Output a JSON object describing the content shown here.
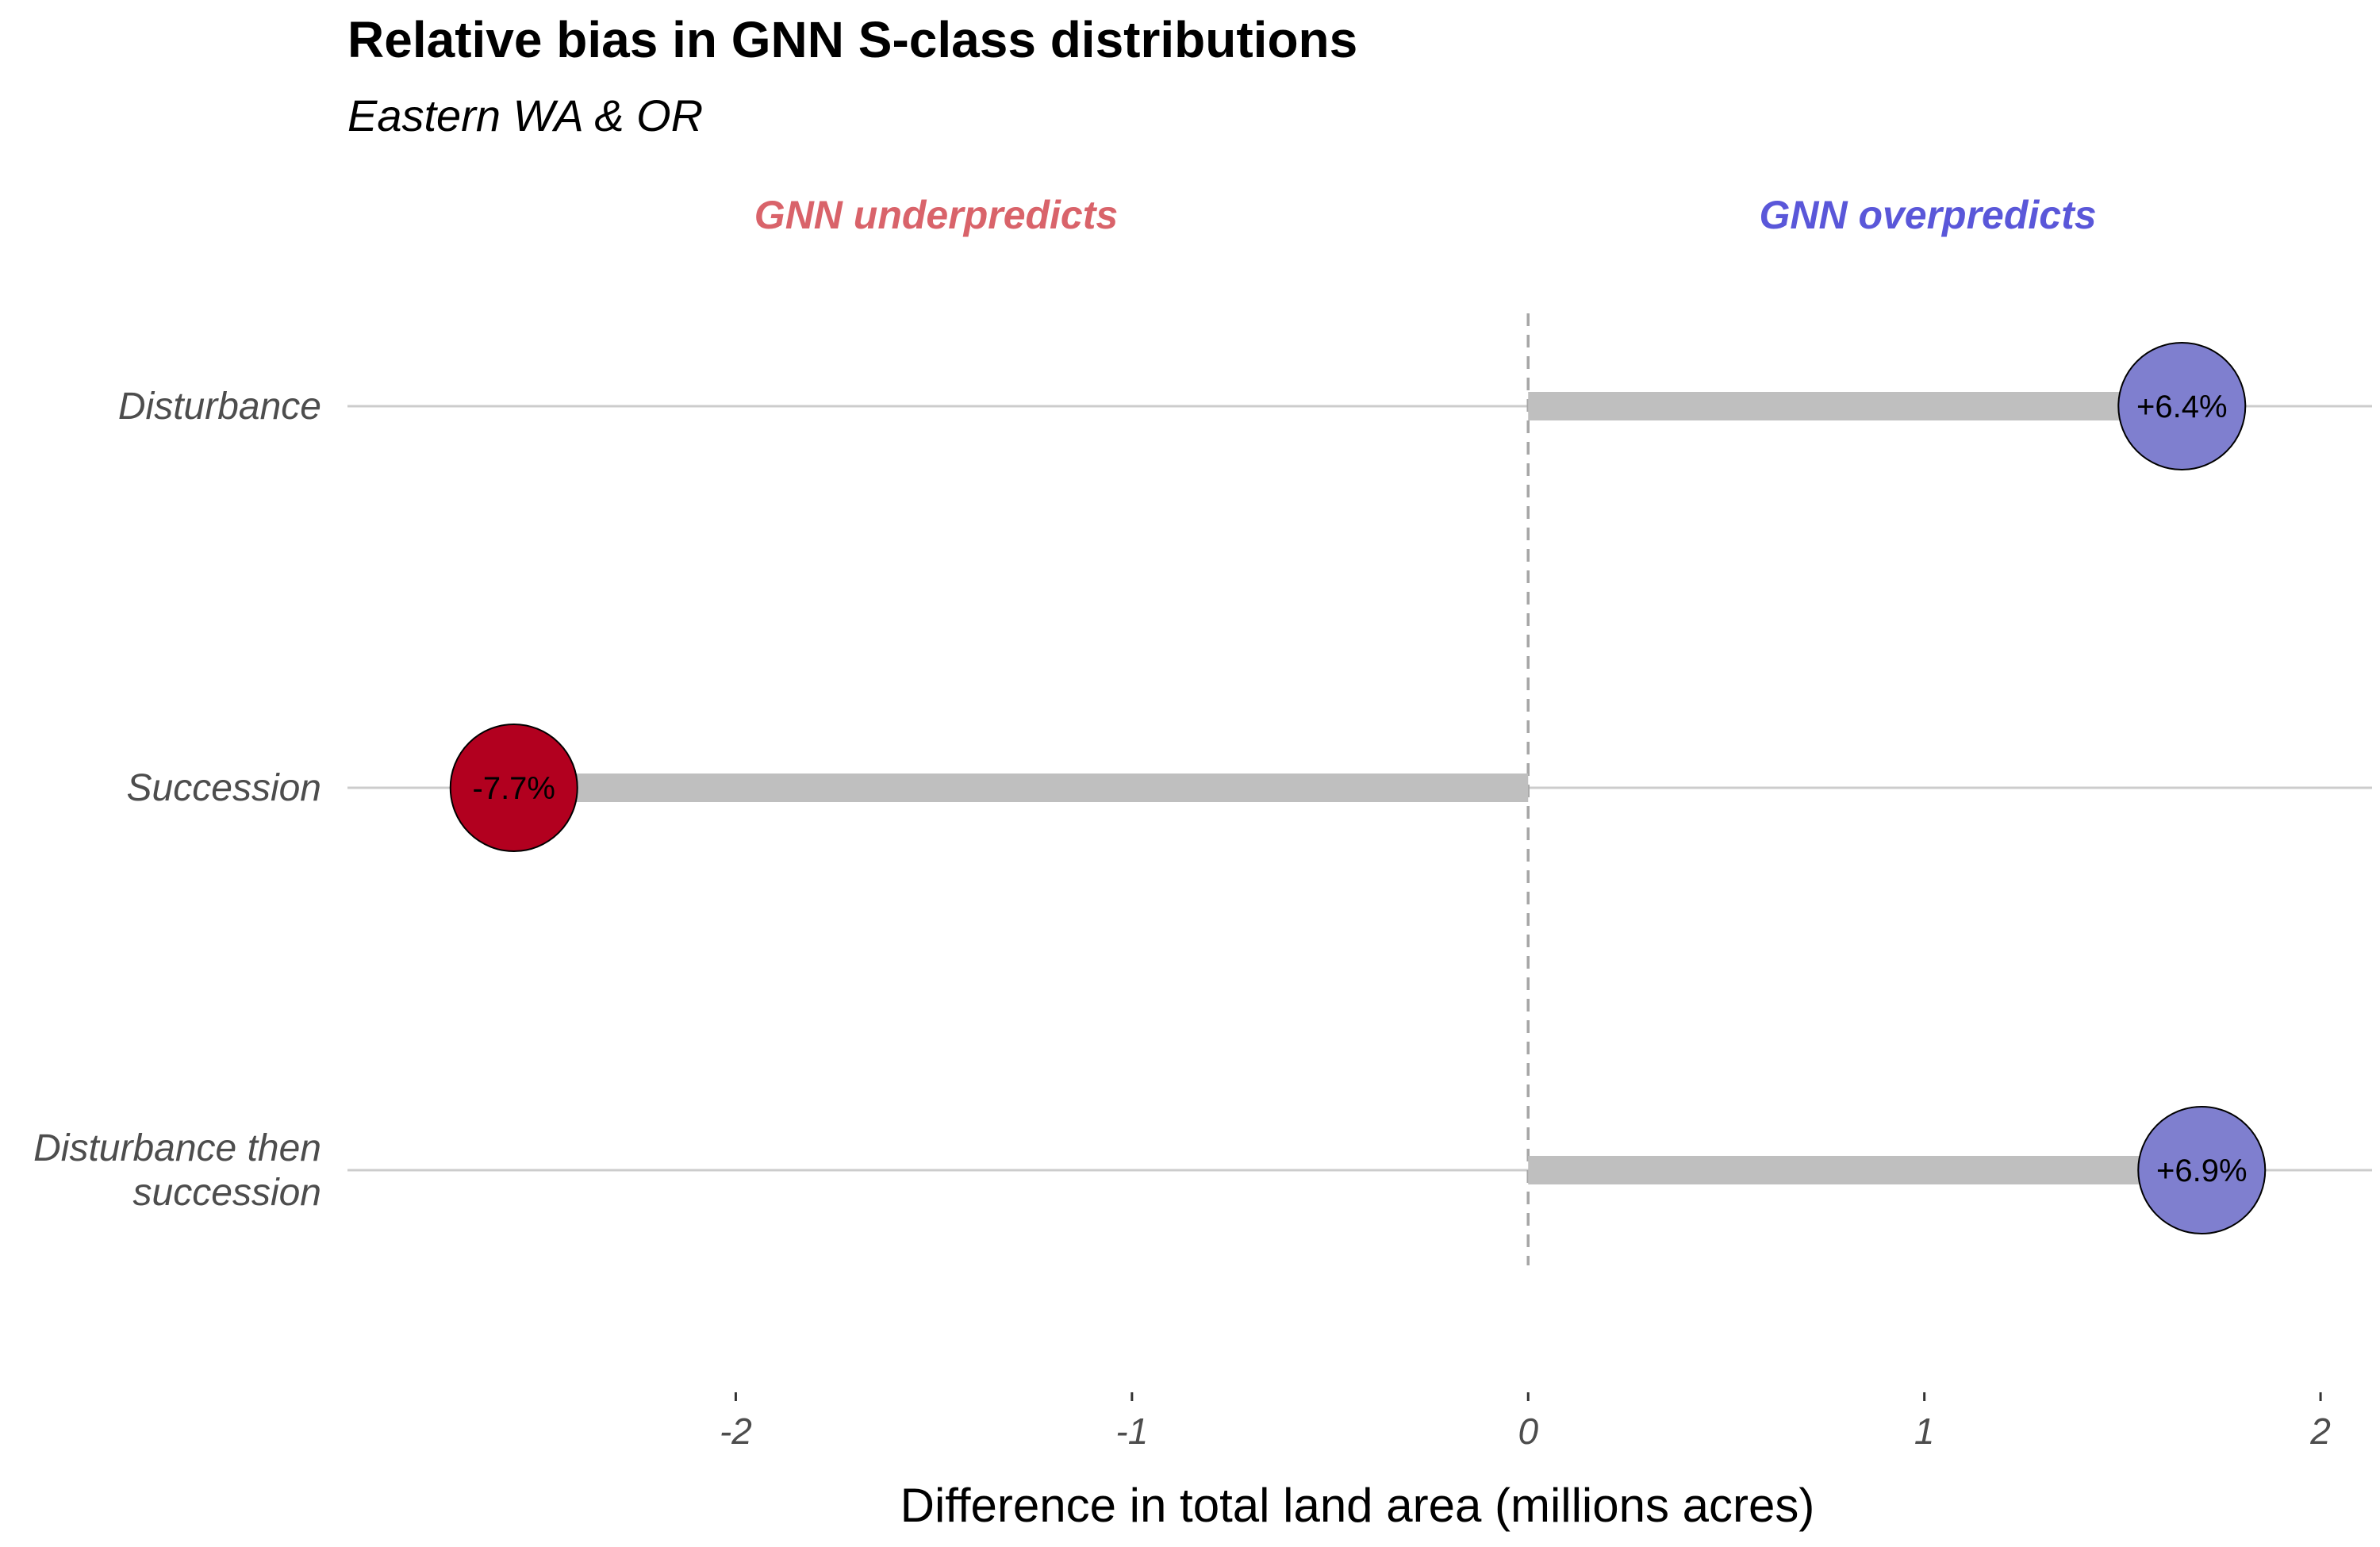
{
  "chart_data": {
    "type": "lollipop",
    "title": "Relative bias in GNN S-class distributions",
    "subtitle": "Eastern WA & OR",
    "annotations": {
      "left": "GNN underpredicts",
      "right": "GNN overpredicts"
    },
    "categories": [
      [
        "Disturbance"
      ],
      [
        "Succession"
      ],
      [
        "Disturbance then",
        "succession"
      ]
    ],
    "values": [
      1.65,
      -2.56,
      1.7
    ],
    "labels": [
      "+6.4%",
      "-7.7%",
      "+6.9%"
    ],
    "point_colors": [
      "#7f7fcf",
      "#b2001f",
      "#7f7fcf"
    ],
    "x_ticks": [
      -2,
      -1,
      0,
      1,
      2
    ],
    "x_tick_labels": [
      "-2",
      "-1",
      "0",
      "1",
      "2"
    ],
    "xlim": [
      -2.98,
      2.13
    ],
    "xlabel": "Difference in total land area (millions acres)",
    "reference_line": 0,
    "colors": {
      "underpredict_text": "#d9636a",
      "overpredict_text": "#5a57d9",
      "stem": "#bfbfbf",
      "gridline": "#cccccc",
      "reference_line": "#a6a6a6"
    }
  }
}
